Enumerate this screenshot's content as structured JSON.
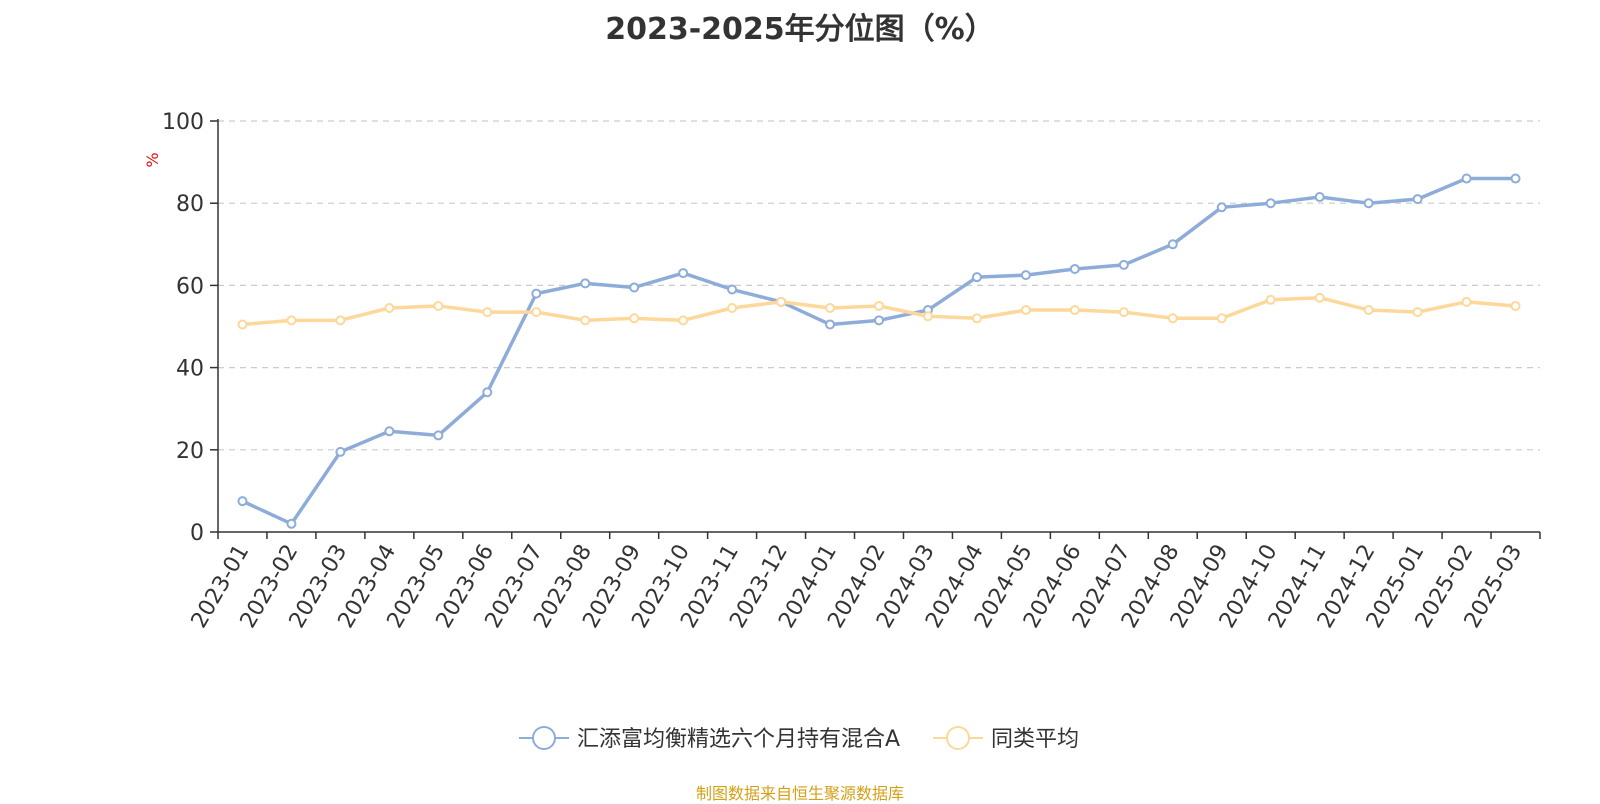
{
  "chart_data": {
    "type": "line",
    "title": "2023-2025年分位图（%）",
    "ylabel": "%",
    "xlabel": "",
    "ylim": [
      0,
      100
    ],
    "yticks": [
      0,
      20,
      40,
      60,
      80,
      100
    ],
    "grid": true,
    "legend_position": "bottom",
    "categories": [
      "2023-01",
      "2023-02",
      "2023-03",
      "2023-04",
      "2023-05",
      "2023-06",
      "2023-07",
      "2023-08",
      "2023-09",
      "2023-10",
      "2023-11",
      "2023-12",
      "2024-01",
      "2024-02",
      "2024-03",
      "2024-04",
      "2024-05",
      "2024-06",
      "2024-07",
      "2024-08",
      "2024-09",
      "2024-10",
      "2024-11",
      "2024-12",
      "2025-01",
      "2025-02",
      "2025-03"
    ],
    "series": [
      {
        "name": "汇添富均衡精选六个月持有混合A",
        "color": "#8eacd9",
        "values": [
          7.5,
          2,
          19.5,
          24.5,
          23.5,
          34,
          58,
          60.5,
          59.5,
          63,
          59,
          56,
          50.5,
          51.5,
          54,
          62,
          62.5,
          64,
          65,
          70,
          79,
          80,
          81.5,
          80,
          81,
          86,
          86
        ]
      },
      {
        "name": "同类平均",
        "color": "#fdd89a",
        "values": [
          50.5,
          51.5,
          51.5,
          54.5,
          55,
          53.5,
          53.5,
          51.5,
          52,
          51.5,
          54.5,
          56,
          54.5,
          55,
          52.5,
          52,
          54,
          54,
          53.5,
          52,
          52,
          56.5,
          57,
          54,
          53.5,
          56,
          55
        ]
      }
    ]
  },
  "source_note": "制图数据来自恒生聚源数据库",
  "colors": {
    "axis": "#333333",
    "grid": "#cccccc",
    "ylabel": "#e01010",
    "source": "#d4a017"
  }
}
